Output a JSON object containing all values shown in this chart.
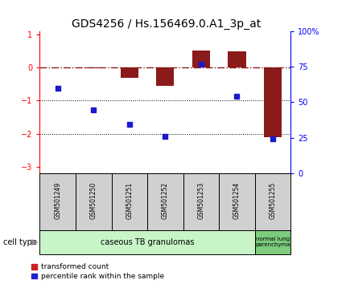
{
  "title": "GDS4256 / Hs.156469.0.A1_3p_at",
  "samples": [
    "GSM501249",
    "GSM501250",
    "GSM501251",
    "GSM501252",
    "GSM501253",
    "GSM501254",
    "GSM501255"
  ],
  "red_bars": [
    0.0,
    -0.03,
    -0.3,
    -0.55,
    0.52,
    0.48,
    -2.1
  ],
  "blue_dots": [
    -0.62,
    -1.28,
    -1.72,
    -2.08,
    0.1,
    -0.88,
    -2.15
  ],
  "ylim_left": [
    -3.2,
    1.1
  ],
  "ylim_right": [
    0,
    100
  ],
  "yticks_left": [
    1,
    0,
    -1,
    -2,
    -3
  ],
  "yticks_right": [
    0,
    25,
    50,
    75,
    100
  ],
  "dotted_lines": [
    -1,
    -2
  ],
  "bar_color": "#8b1a1a",
  "dot_color": "#1a1acd",
  "legend_bar_color": "#cc2222",
  "legend_dot_color": "#2222cc",
  "bg_color": "#ffffff",
  "tick_label_fontsize": 7,
  "title_fontsize": 10,
  "bar_width": 0.5,
  "group1_color": "#c8f5c8",
  "group2_color": "#7dcc7d",
  "sample_box_color": "#d0d0d0"
}
